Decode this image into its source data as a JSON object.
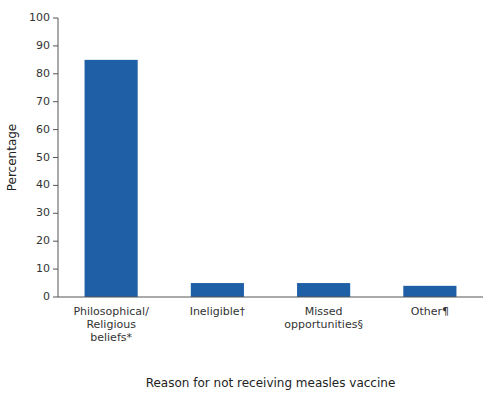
{
  "chart_data": {
    "type": "bar",
    "categories": [
      "Philosophical/\nReligious\nbeliefs*",
      "Ineligible†",
      "Missed\nopportunities§",
      "Other¶"
    ],
    "values": [
      85,
      5,
      5,
      4
    ],
    "color": "#1F5FA6",
    "ylabel": "Percentage",
    "xlabel": "Reason for not receiving measles vaccine",
    "ylim": [
      0,
      100
    ],
    "yticks": [
      0,
      10,
      20,
      30,
      40,
      50,
      60,
      70,
      80,
      90,
      100
    ],
    "grid": false
  }
}
